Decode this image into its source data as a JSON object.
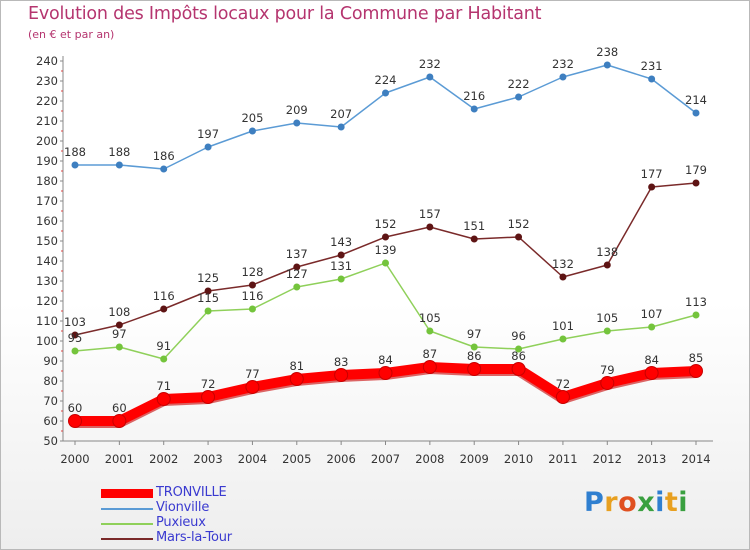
{
  "title": "Evolution des Impôts locaux pour la Commune par Habitant",
  "subtitle": "(en € et par an)",
  "logo_text": "Proxiti",
  "chart_data": {
    "type": "line",
    "title": "Evolution des Impôts locaux pour la Commune par Habitant",
    "subtitle": "(en € et par an)",
    "xlabel": "",
    "ylabel": "",
    "ylim": [
      50,
      240
    ],
    "ytick_step": 10,
    "grid": false,
    "legend_position": "bottom-left",
    "x": [
      "2000",
      "2001",
      "2002",
      "2003",
      "2004",
      "2005",
      "2006",
      "2007",
      "2008",
      "2009",
      "2010",
      "2011",
      "2012",
      "2013",
      "2014"
    ],
    "series": [
      {
        "name": "Vionville",
        "color": "#5b9bd5",
        "marker": "#3e7fc0",
        "values": [
          188,
          188,
          186,
          197,
          205,
          209,
          207,
          224,
          232,
          216,
          222,
          232,
          238,
          231,
          214
        ]
      },
      {
        "name": "Mars-la-Tour",
        "color": "#7a2a2a",
        "marker": "#5e1414",
        "values": [
          103,
          108,
          116,
          125,
          128,
          137,
          143,
          152,
          157,
          151,
          152,
          132,
          138,
          177,
          179
        ]
      },
      {
        "name": "Puxieux",
        "color": "#8fd05a",
        "marker": "#74c43c",
        "values": [
          95,
          97,
          91,
          115,
          116,
          127,
          131,
          139,
          105,
          97,
          96,
          101,
          105,
          107,
          113
        ]
      },
      {
        "name": "TRONVILLE",
        "color": "#ff0000",
        "marker": "#ff0000",
        "values": [
          60,
          60,
          71,
          72,
          77,
          81,
          83,
          84,
          87,
          86,
          86,
          72,
          79,
          84,
          85
        ]
      }
    ]
  },
  "legend": [
    {
      "name": "TRONVILLE",
      "color": "#ff0000",
      "thickness": "thick",
      "text_color": "#3a3ad0"
    },
    {
      "name": "Vionville",
      "color": "#5b9bd5",
      "thickness": "thin",
      "text_color": "#3a3ad0"
    },
    {
      "name": "Puxieux",
      "color": "#8fd05a",
      "thickness": "thin",
      "text_color": "#3a3ad0"
    },
    {
      "name": "Mars-la-Tour",
      "color": "#7a2a2a",
      "thickness": "thin",
      "text_color": "#3a3ad0"
    }
  ]
}
